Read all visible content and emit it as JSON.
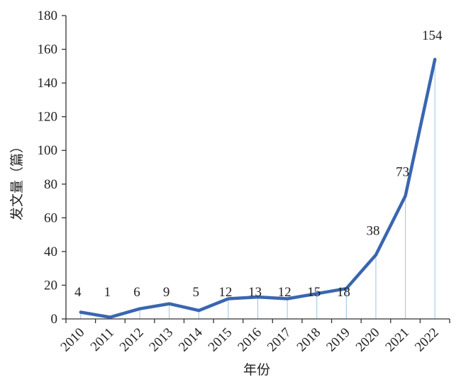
{
  "chart_data": {
    "type": "line",
    "title": "",
    "xlabel": "年份",
    "ylabel": "发文量（篇）",
    "categories": [
      "2010",
      "2011",
      "2012",
      "2013",
      "2014",
      "2015",
      "2016",
      "2017",
      "2018",
      "2019",
      "2020",
      "2021",
      "2022"
    ],
    "values": [
      4,
      1,
      6,
      9,
      5,
      12,
      13,
      12,
      15,
      18,
      38,
      73,
      154
    ],
    "data_labels": [
      "4",
      "1",
      "6",
      "9",
      "5",
      "12",
      "13",
      "12",
      "15",
      "18",
      "38",
      "73",
      "154"
    ],
    "ylim": [
      0,
      180
    ],
    "yticks": [
      0,
      20,
      40,
      60,
      80,
      100,
      120,
      140,
      160,
      180
    ],
    "grid": false,
    "legend": "none",
    "line_color": "#3a66b0",
    "drop_line_color": "#9cc3e0"
  }
}
